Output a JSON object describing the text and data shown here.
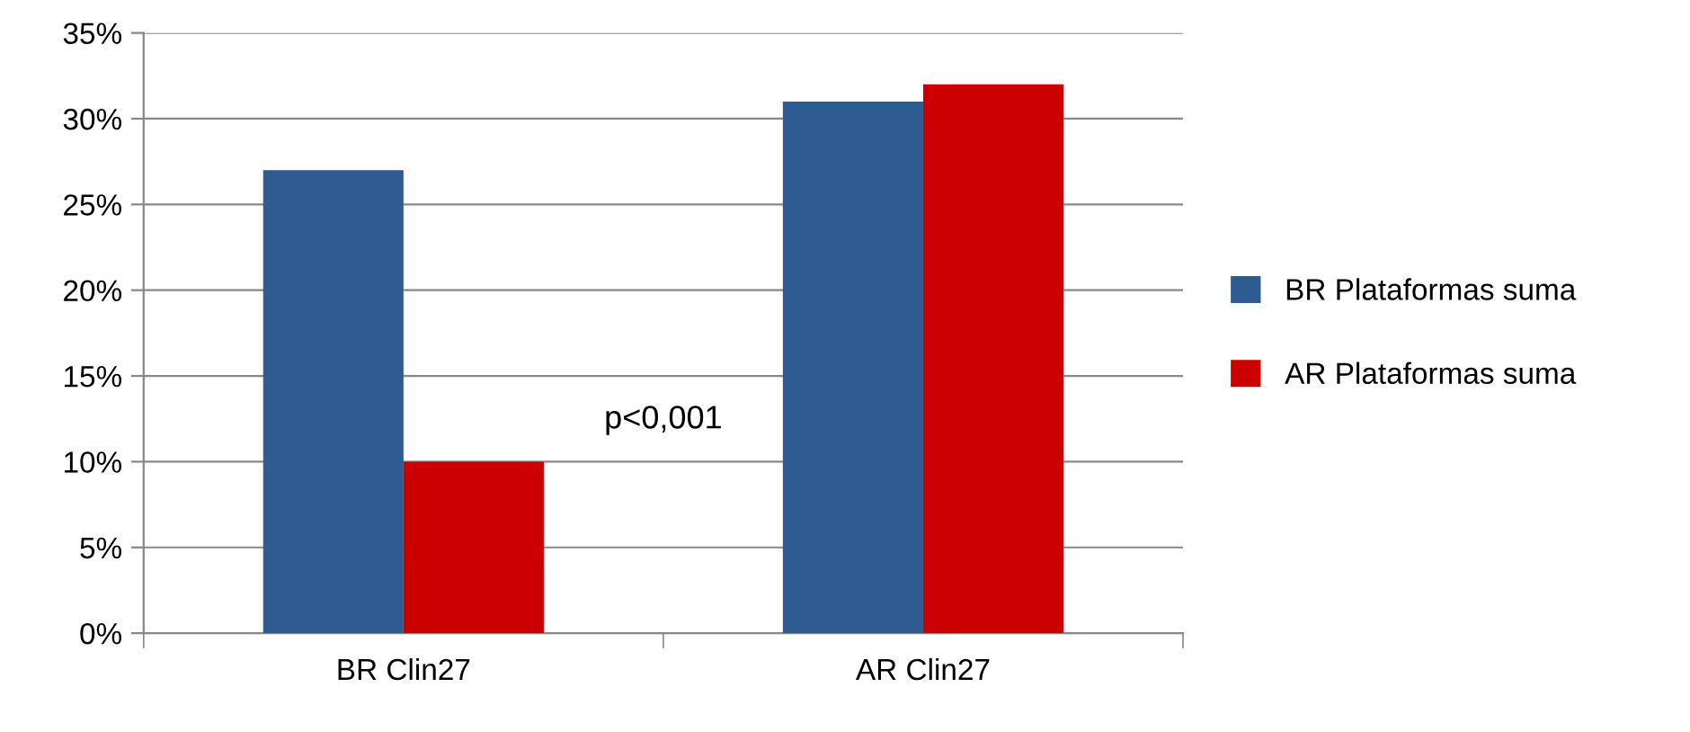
{
  "chart_data": {
    "type": "bar",
    "categories": [
      "BR Clin27",
      "AR Clin27"
    ],
    "series": [
      {
        "name": "BR Plataformas suma",
        "color": "#2e5b92",
        "values": [
          27,
          31
        ]
      },
      {
        "name": "AR Plataformas suma",
        "color": "#cc0000",
        "values": [
          10,
          32
        ]
      }
    ],
    "ylim": [
      0,
      35
    ],
    "yticks": [
      {
        "value": 0,
        "label": "0%"
      },
      {
        "value": 5,
        "label": "5%"
      },
      {
        "value": 10,
        "label": "10%"
      },
      {
        "value": 15,
        "label": "15%"
      },
      {
        "value": 20,
        "label": "20%"
      },
      {
        "value": 25,
        "label": "25%"
      },
      {
        "value": 30,
        "label": "30%"
      },
      {
        "value": 35,
        "label": "35%"
      }
    ],
    "grid": "y",
    "legend": "right",
    "annotations": [
      "p<0,001"
    ]
  }
}
